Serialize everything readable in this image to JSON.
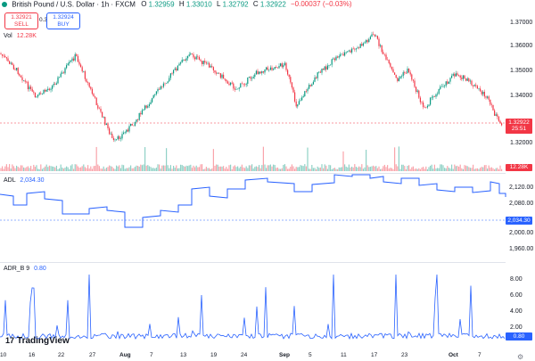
{
  "header": {
    "title": "British Pound / U.S. Dollar · 1h · FXCM",
    "ohlc": [
      {
        "label": "O",
        "value": "1.32959"
      },
      {
        "label": "H",
        "value": "1.33010"
      },
      {
        "label": "L",
        "value": "1.32792"
      },
      {
        "label": "C",
        "value": "1.32922"
      }
    ],
    "change": "−0.00037 (−0.03%)",
    "sell_price": "1.32921",
    "sell_label": "SELL",
    "spread": "0.3",
    "buy_price": "1.32924",
    "buy_label": "BUY",
    "volume_label": "Vol",
    "volume_value": "12.28K"
  },
  "price_axis": {
    "ticks": [
      "1.37000",
      "1.36000",
      "1.35000",
      "1.34000",
      "1.32000"
    ],
    "last_price": "1.32922",
    "countdown": "25:51",
    "volume_tag": "12.28K"
  },
  "adl": {
    "label": "ADL",
    "value": "2,034.30",
    "ticks": [
      "2,120.00",
      "2,080.00",
      "2,000.00",
      "1,960.00"
    ],
    "last_tag": "2,034.30"
  },
  "adr": {
    "label": "ADR_B",
    "param": "9",
    "value": "0.80",
    "ticks": [
      "8.00",
      "6.00",
      "4.00",
      "2.00"
    ],
    "last_tag": "0.80"
  },
  "time_axis": {
    "labels": [
      "10",
      "16",
      "22",
      "27",
      "Aug",
      "7",
      "13",
      "19",
      "24",
      "Sep",
      "5",
      "11",
      "17",
      "23",
      "Oct",
      "7"
    ]
  },
  "brand": {
    "name": "TradingView",
    "mark": "17"
  },
  "colors": {
    "up": "#089981",
    "down": "#f23645",
    "indicator": "#2962ff",
    "last_line": "#f23645"
  },
  "icons": {
    "status": "market-open-dot-icon",
    "settings": "gear-icon"
  }
}
